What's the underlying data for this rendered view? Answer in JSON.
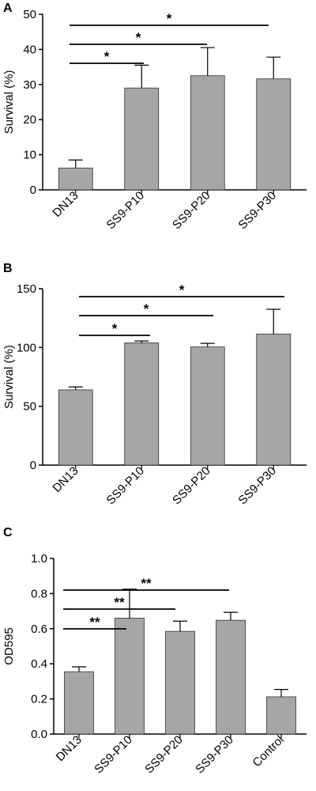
{
  "chart_data": [
    {
      "panel": "A",
      "type": "bar",
      "categories": [
        "DN13",
        "SS9-P10",
        "SS9-P20",
        "SS9-P30"
      ],
      "values": [
        6.2,
        29.0,
        32.5,
        31.6
      ],
      "errors": [
        2.3,
        6.5,
        8.0,
        6.2
      ],
      "ylabel": "Survival (%)",
      "xlabel": "",
      "ylim": [
        0,
        50
      ],
      "yticks": [
        "0",
        "10",
        "20",
        "30",
        "40",
        "50"
      ],
      "bar_color": "#a6a6a9",
      "significance": [
        {
          "from": "DN13",
          "to": "SS9-P10",
          "label": "*"
        },
        {
          "from": "DN13",
          "to": "SS9-P20",
          "label": "*"
        },
        {
          "from": "DN13",
          "to": "SS9-P30",
          "label": "*"
        }
      ]
    },
    {
      "panel": "B",
      "type": "bar",
      "categories": [
        "DN13",
        "SS9-P10",
        "SS9-P20",
        "SS9-P30"
      ],
      "values": [
        64,
        104,
        100.5,
        111.5
      ],
      "errors": [
        2.5,
        1.5,
        3.0,
        21.0
      ],
      "ylabel": "Survival (%)",
      "xlabel": "",
      "ylim": [
        0,
        150
      ],
      "yticks": [
        "0",
        "50",
        "100",
        "150"
      ],
      "bar_color": "#a6a6a9",
      "significance": [
        {
          "from": "DN13",
          "to": "SS9-P10",
          "label": "*"
        },
        {
          "from": "DN13",
          "to": "SS9-P20",
          "label": "*"
        },
        {
          "from": "DN13",
          "to": "SS9-P30",
          "label": "*"
        }
      ]
    },
    {
      "panel": "C",
      "type": "bar",
      "categories": [
        "DN13",
        "SS9-P10",
        "SS9-P20",
        "SS9-P30",
        "Control"
      ],
      "values": [
        0.355,
        0.66,
        0.585,
        0.648,
        0.212
      ],
      "errors": [
        0.028,
        0.165,
        0.058,
        0.045,
        0.042
      ],
      "ylabel": "OD595",
      "xlabel": "",
      "ylim": [
        0,
        1.0
      ],
      "yticks": [
        "0.0",
        "0.2",
        "0.4",
        "0.6",
        "0.8",
        "1.0"
      ],
      "bar_color": "#a6a6a9",
      "significance": [
        {
          "from": "DN13",
          "to": "SS9-P10",
          "label": "**"
        },
        {
          "from": "DN13",
          "to": "SS9-P20",
          "label": "**"
        },
        {
          "from": "DN13",
          "to": "SS9-P30",
          "label": "**"
        }
      ]
    }
  ]
}
